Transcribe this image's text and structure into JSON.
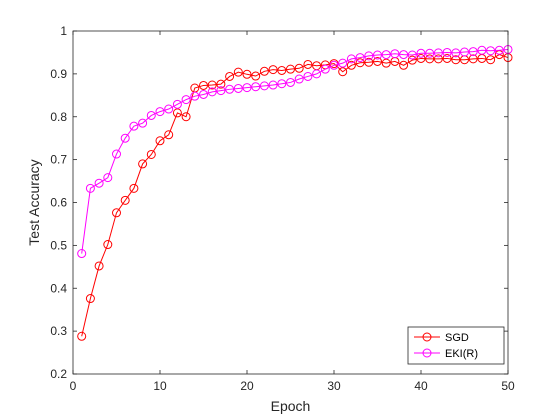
{
  "chart_data": {
    "type": "line",
    "title": "",
    "xlabel": "Epoch",
    "ylabel": "Test Accuracy",
    "xlim": [
      0,
      50
    ],
    "ylim": [
      0.2,
      1
    ],
    "xticks": [
      0,
      10,
      20,
      30,
      40,
      50
    ],
    "yticks": [
      0.2,
      0.3,
      0.4,
      0.5,
      0.6,
      0.7,
      0.8,
      0.9,
      1
    ],
    "xtick_labels": [
      "0",
      "10",
      "20",
      "30",
      "40",
      "50"
    ],
    "ytick_labels": [
      "0.2",
      "0.3",
      "0.4",
      "0.5",
      "0.6",
      "0.7",
      "0.8",
      "0.9",
      "1"
    ],
    "grid": false,
    "legend_position": "bottom-right",
    "x": [
      1,
      2,
      3,
      4,
      5,
      6,
      7,
      8,
      9,
      10,
      11,
      12,
      13,
      14,
      15,
      16,
      17,
      18,
      19,
      20,
      21,
      22,
      23,
      24,
      25,
      26,
      27,
      28,
      29,
      30,
      31,
      32,
      33,
      34,
      35,
      36,
      37,
      38,
      39,
      40,
      41,
      42,
      43,
      44,
      45,
      46,
      47,
      48,
      49,
      50
    ],
    "series": [
      {
        "name": "SGD",
        "color": "#ff0000",
        "marker": "circle",
        "values": [
          0.288,
          0.376,
          0.452,
          0.502,
          0.576,
          0.605,
          0.633,
          0.69,
          0.712,
          0.744,
          0.758,
          0.809,
          0.8,
          0.867,
          0.873,
          0.874,
          0.876,
          0.894,
          0.904,
          0.899,
          0.895,
          0.906,
          0.91,
          0.908,
          0.911,
          0.913,
          0.922,
          0.919,
          0.921,
          0.924,
          0.905,
          0.92,
          0.926,
          0.927,
          0.929,
          0.925,
          0.929,
          0.92,
          0.932,
          0.936,
          0.935,
          0.935,
          0.936,
          0.933,
          0.933,
          0.935,
          0.936,
          0.933,
          0.945,
          0.938
        ]
      },
      {
        "name": "EKI(R)",
        "color": "#ff00ff",
        "marker": "circle",
        "values": [
          0.481,
          0.633,
          0.645,
          0.658,
          0.713,
          0.75,
          0.778,
          0.785,
          0.803,
          0.812,
          0.818,
          0.829,
          0.84,
          0.848,
          0.852,
          0.858,
          0.861,
          0.864,
          0.866,
          0.868,
          0.87,
          0.872,
          0.874,
          0.877,
          0.88,
          0.888,
          0.894,
          0.9,
          0.911,
          0.92,
          0.925,
          0.935,
          0.938,
          0.942,
          0.944,
          0.945,
          0.947,
          0.945,
          0.944,
          0.948,
          0.948,
          0.949,
          0.95,
          0.949,
          0.951,
          0.952,
          0.955,
          0.954,
          0.955,
          0.957
        ]
      }
    ]
  }
}
